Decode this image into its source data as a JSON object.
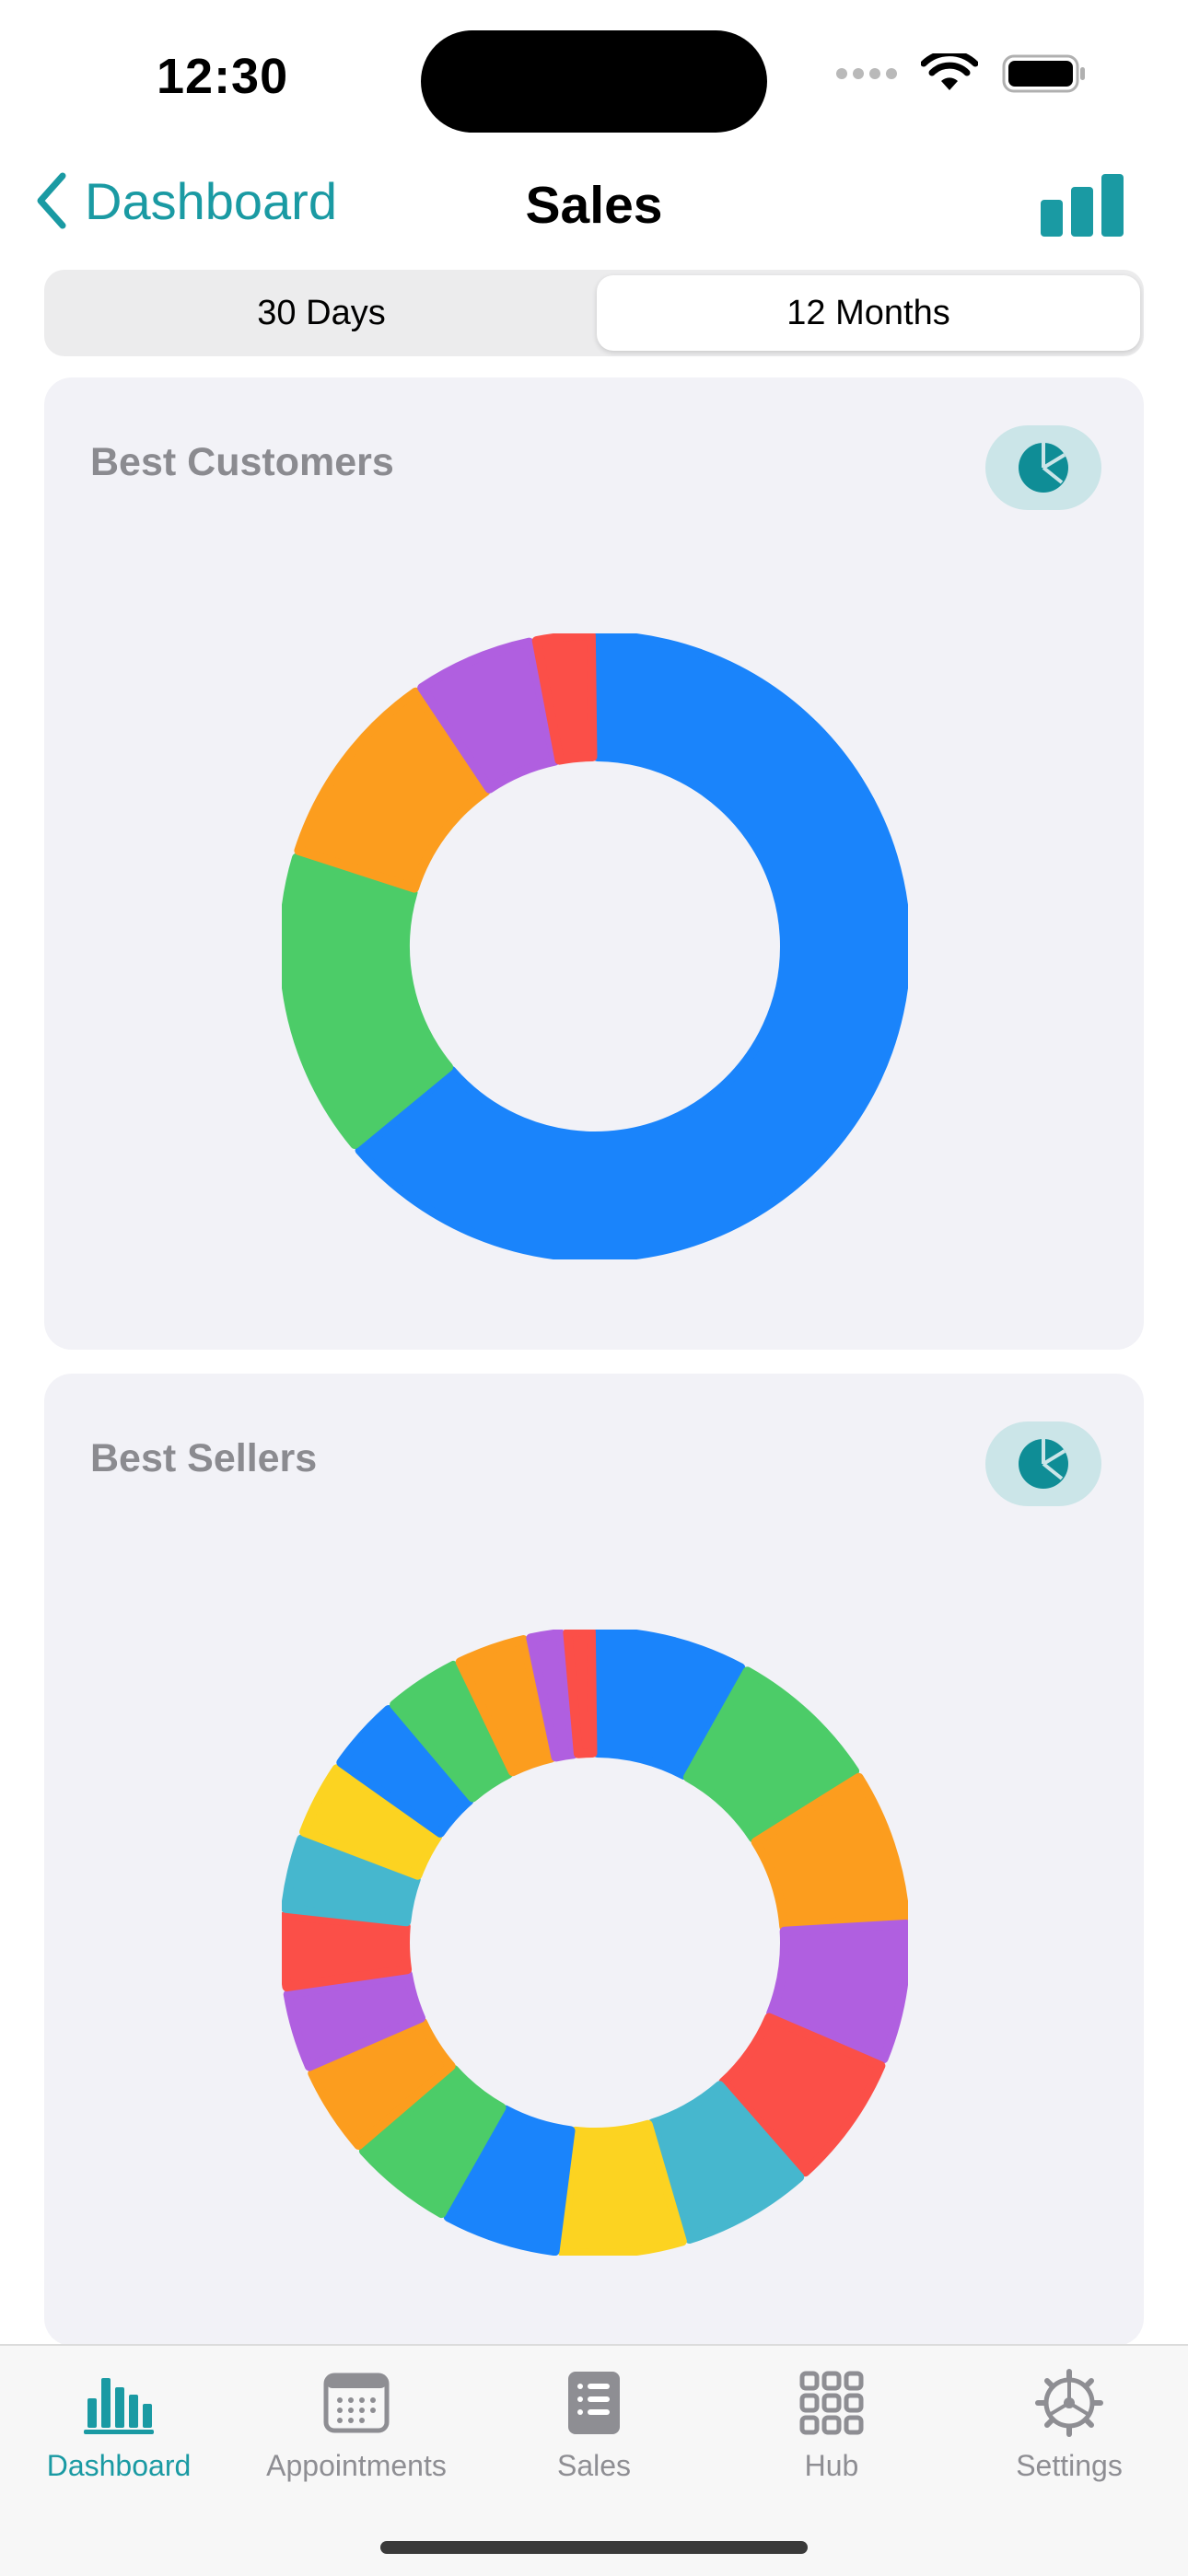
{
  "status_bar": {
    "time": "12:30"
  },
  "nav": {
    "back_label": "Dashboard",
    "title": "Sales"
  },
  "segments": {
    "left": "30 Days",
    "right": "12 Months",
    "selected": "12 Months"
  },
  "cards": [
    {
      "title": "Best Customers"
    },
    {
      "title": "Best Sellers"
    }
  ],
  "chart_data": [
    {
      "type": "pie",
      "title": "Best Customers",
      "style": "donut",
      "slices": [
        {
          "value": 60,
          "color": "#1a84fb"
        },
        {
          "value": 15,
          "color": "#4ccc68"
        },
        {
          "value": 10,
          "color": "#fc9d1e"
        },
        {
          "value": 6,
          "color": "#b05fe0"
        },
        {
          "value": 3,
          "color": "#fb4f48"
        }
      ]
    },
    {
      "type": "pie",
      "title": "Best Sellers",
      "style": "donut",
      "slices": [
        {
          "value": 7.5,
          "color": "#1a84fb"
        },
        {
          "value": 7.5,
          "color": "#4ccc68"
        },
        {
          "value": 7.5,
          "color": "#fc9d1e"
        },
        {
          "value": 7.0,
          "color": "#b05fe0"
        },
        {
          "value": 6.7,
          "color": "#fb4f48"
        },
        {
          "value": 6.5,
          "color": "#46b7ce"
        },
        {
          "value": 6.2,
          "color": "#fcd321"
        },
        {
          "value": 5.8,
          "color": "#1a84fb"
        },
        {
          "value": 5.2,
          "color": "#4ccc68"
        },
        {
          "value": 4.5,
          "color": "#fc9d1e"
        },
        {
          "value": 4.0,
          "color": "#b05fe0"
        },
        {
          "value": 3.8,
          "color": "#fb4f48"
        },
        {
          "value": 3.8,
          "color": "#46b7ce"
        },
        {
          "value": 3.8,
          "color": "#fcd321"
        },
        {
          "value": 3.8,
          "color": "#1a84fb"
        },
        {
          "value": 3.8,
          "color": "#4ccc68"
        },
        {
          "value": 3.6,
          "color": "#fc9d1e"
        },
        {
          "value": 1.8,
          "color": "#b05fe0"
        },
        {
          "value": 1.5,
          "color": "#fb4f48"
        }
      ]
    }
  ],
  "tabs": [
    {
      "label": "Dashboard",
      "icon": "dashboard-bars-icon",
      "active": true
    },
    {
      "label": "Appointments",
      "icon": "calendar-icon",
      "active": false
    },
    {
      "label": "Sales",
      "icon": "list-doc-icon",
      "active": false
    },
    {
      "label": "Hub",
      "icon": "grid-icon",
      "active": false
    },
    {
      "label": "Settings",
      "icon": "gear-icon",
      "active": false
    }
  ],
  "colors": {
    "accent": "#1a9aa3",
    "inactive": "#8e8e93",
    "card_bg": "#f2f2f7"
  }
}
